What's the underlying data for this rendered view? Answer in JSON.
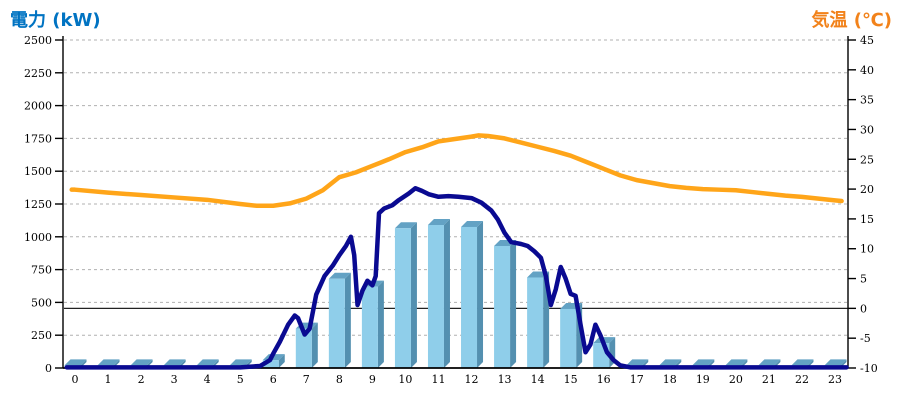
{
  "titles": {
    "left": "電力 (kW)",
    "right": "気温 (℃)"
  },
  "colors": {
    "left_title": "#0073C2",
    "right_title": "#F2821A",
    "bar_front": "#8FCEEA",
    "bar_top": "#63A2C4",
    "bar_side": "#5490B0",
    "power_line": "#0A0A91",
    "temp_line": "#FFA519",
    "gridline": "#B0B0B0",
    "axis": "#000000"
  },
  "chart_data": {
    "type": "combo",
    "title": "",
    "grid": "horizontal-dashed",
    "legend": "none",
    "x": {
      "label": "",
      "categories": [
        0,
        1,
        2,
        3,
        4,
        5,
        6,
        7,
        8,
        9,
        10,
        11,
        12,
        13,
        14,
        15,
        16,
        17,
        18,
        19,
        20,
        21,
        22,
        23
      ]
    },
    "left_axis": {
      "title": "電力 (kW)",
      "min": 0,
      "max": 2500,
      "step": 250
    },
    "right_axis": {
      "title": "気温 (℃)",
      "min": -10,
      "max": 45,
      "step": 5,
      "zero_line": true
    },
    "series": [
      {
        "name": "power-bars",
        "type": "bar",
        "axis": "left",
        "values": [
          20,
          20,
          20,
          20,
          20,
          20,
          60,
          300,
          680,
          620,
          1065,
          1090,
          1075,
          930,
          690,
          450,
          190,
          20,
          20,
          20,
          20,
          20,
          20,
          20
        ]
      },
      {
        "name": "power-line",
        "type": "line",
        "axis": "left",
        "points": [
          [
            -0.25,
            5
          ],
          [
            0,
            5
          ],
          [
            1,
            5
          ],
          [
            2,
            5
          ],
          [
            3,
            5
          ],
          [
            4,
            5
          ],
          [
            5,
            5
          ],
          [
            5.6,
            15
          ],
          [
            5.9,
            60
          ],
          [
            6,
            110
          ],
          [
            6.2,
            200
          ],
          [
            6.45,
            330
          ],
          [
            6.65,
            400
          ],
          [
            6.75,
            380
          ],
          [
            6.95,
            255
          ],
          [
            7.1,
            300
          ],
          [
            7.3,
            560
          ],
          [
            7.55,
            700
          ],
          [
            7.8,
            780
          ],
          [
            8,
            860
          ],
          [
            8.2,
            930
          ],
          [
            8.35,
            1000
          ],
          [
            8.45,
            860
          ],
          [
            8.55,
            480
          ],
          [
            8.7,
            590
          ],
          [
            8.85,
            665
          ],
          [
            9.0,
            630
          ],
          [
            9.1,
            700
          ],
          [
            9.2,
            1180
          ],
          [
            9.35,
            1215
          ],
          [
            9.6,
            1240
          ],
          [
            9.8,
            1280
          ],
          [
            10.1,
            1330
          ],
          [
            10.3,
            1370
          ],
          [
            10.5,
            1350
          ],
          [
            10.7,
            1325
          ],
          [
            11,
            1305
          ],
          [
            11.3,
            1310
          ],
          [
            11.6,
            1305
          ],
          [
            12,
            1295
          ],
          [
            12.3,
            1260
          ],
          [
            12.6,
            1200
          ],
          [
            12.8,
            1130
          ],
          [
            13,
            1030
          ],
          [
            13.2,
            960
          ],
          [
            13.5,
            945
          ],
          [
            13.7,
            930
          ],
          [
            13.9,
            890
          ],
          [
            14.1,
            840
          ],
          [
            14.25,
            700
          ],
          [
            14.4,
            480
          ],
          [
            14.55,
            600
          ],
          [
            14.7,
            770
          ],
          [
            14.85,
            680
          ],
          [
            15,
            565
          ],
          [
            15.15,
            550
          ],
          [
            15.3,
            330
          ],
          [
            15.45,
            120
          ],
          [
            15.6,
            180
          ],
          [
            15.75,
            330
          ],
          [
            15.9,
            250
          ],
          [
            16.1,
            120
          ],
          [
            16.3,
            60
          ],
          [
            16.5,
            20
          ],
          [
            16.8,
            5
          ],
          [
            17,
            5
          ],
          [
            18,
            5
          ],
          [
            19,
            5
          ],
          [
            20,
            5
          ],
          [
            21,
            5
          ],
          [
            22,
            5
          ],
          [
            23,
            5
          ],
          [
            23.35,
            5
          ]
        ]
      },
      {
        "name": "temperature-line",
        "type": "line",
        "axis": "right",
        "points": [
          [
            -0.1,
            19.9
          ],
          [
            0,
            19.9
          ],
          [
            1,
            19.4
          ],
          [
            2,
            19.0
          ],
          [
            3,
            18.6
          ],
          [
            4,
            18.2
          ],
          [
            5,
            17.5
          ],
          [
            5.5,
            17.2
          ],
          [
            6,
            17.2
          ],
          [
            6.5,
            17.6
          ],
          [
            7,
            18.4
          ],
          [
            7.5,
            19.8
          ],
          [
            8,
            22.0
          ],
          [
            8.5,
            22.8
          ],
          [
            9,
            23.9
          ],
          [
            9.5,
            25.0
          ],
          [
            10,
            26.2
          ],
          [
            10.5,
            27.0
          ],
          [
            11,
            28.0
          ],
          [
            11.5,
            28.4
          ],
          [
            12,
            28.8
          ],
          [
            12.2,
            29.0
          ],
          [
            12.5,
            28.9
          ],
          [
            13,
            28.5
          ],
          [
            13.5,
            27.8
          ],
          [
            14,
            27.1
          ],
          [
            14.5,
            26.4
          ],
          [
            15,
            25.6
          ],
          [
            15.5,
            24.5
          ],
          [
            16,
            23.4
          ],
          [
            16.5,
            22.3
          ],
          [
            17,
            21.5
          ],
          [
            17.5,
            21.0
          ],
          [
            18,
            20.5
          ],
          [
            18.5,
            20.2
          ],
          [
            19,
            20.0
          ],
          [
            19.5,
            19.9
          ],
          [
            20,
            19.8
          ],
          [
            20.5,
            19.5
          ],
          [
            21,
            19.2
          ],
          [
            21.5,
            18.9
          ],
          [
            22,
            18.7
          ],
          [
            22.5,
            18.4
          ],
          [
            23,
            18.1
          ],
          [
            23.2,
            18.0
          ]
        ]
      }
    ]
  }
}
